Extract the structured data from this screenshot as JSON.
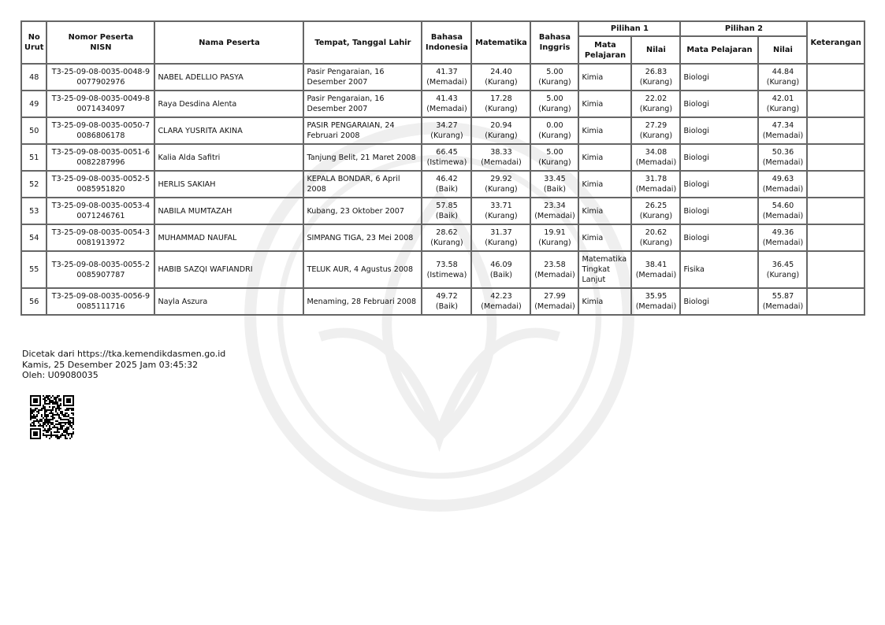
{
  "table": {
    "headers": {
      "no_urut": "No Urut",
      "nomor_peserta": "Nomor Peserta",
      "nisn": "NISN",
      "nama": "Nama Peserta",
      "ttl": "Tempat, Tanggal Lahir",
      "bahasa_indonesia": "Bahasa Indonesia",
      "matematika": "Matematika",
      "bahasa_inggris": "Bahasa Inggris",
      "pilihan1": "Pilihan 1",
      "pilihan2": "Pilihan 2",
      "mata_pelajaran": "Mata Pelajaran",
      "nilai": "Nilai",
      "keterangan": "Keterangan"
    },
    "rows": [
      {
        "no": "48",
        "nomor": "T3-25-09-08-0035-0048-9",
        "nisn": "0077902976",
        "nama": "NABEL ADELLIO PASYA",
        "ttl": "Pasir Pengaraian, 16 Desember 2007",
        "bi": "41.37",
        "bi_k": "(Memadai)",
        "mtk": "24.40",
        "mtk_k": "(Kurang)",
        "big": "5.00",
        "big_k": "(Kurang)",
        "p1": "Kimia",
        "p1n": "26.83",
        "p1k": "(Kurang)",
        "p2": "Biologi",
        "p2n": "44.84",
        "p2k": "(Kurang)",
        "ket": ""
      },
      {
        "no": "49",
        "nomor": "T3-25-09-08-0035-0049-8",
        "nisn": "0071434097",
        "nama": "Raya Desdina Alenta",
        "ttl": "Pasir Pengaraian, 16 Desember 2007",
        "bi": "41.43",
        "bi_k": "(Memadai)",
        "mtk": "17.28",
        "mtk_k": "(Kurang)",
        "big": "5.00",
        "big_k": "(Kurang)",
        "p1": "Kimia",
        "p1n": "22.02",
        "p1k": "(Kurang)",
        "p2": "Biologi",
        "p2n": "42.01",
        "p2k": "(Kurang)",
        "ket": ""
      },
      {
        "no": "50",
        "nomor": "T3-25-09-08-0035-0050-7",
        "nisn": "0086806178",
        "nama": "CLARA YUSRITA AKINA",
        "ttl": "PASIR PENGARAIAN, 24 Februari 2008",
        "bi": "34.27",
        "bi_k": "(Kurang)",
        "mtk": "20.94",
        "mtk_k": "(Kurang)",
        "big": "0.00",
        "big_k": "(Kurang)",
        "p1": "Kimia",
        "p1n": "27.29",
        "p1k": "(Kurang)",
        "p2": "Biologi",
        "p2n": "47.34",
        "p2k": "(Memadai)",
        "ket": ""
      },
      {
        "no": "51",
        "nomor": "T3-25-09-08-0035-0051-6",
        "nisn": "0082287996",
        "nama": "Kalia Alda Safitri",
        "ttl": "Tanjung Belit, 21 Maret 2008",
        "bi": "66.45",
        "bi_k": "(Istimewa)",
        "mtk": "38.33",
        "mtk_k": "(Memadai)",
        "big": "5.00",
        "big_k": "(Kurang)",
        "p1": "Kimia",
        "p1n": "34.08",
        "p1k": "(Memadai)",
        "p2": "Biologi",
        "p2n": "50.36",
        "p2k": "(Memadai)",
        "ket": ""
      },
      {
        "no": "52",
        "nomor": "T3-25-09-08-0035-0052-5",
        "nisn": "0085951820",
        "nama": "HERLIS SAKIAH",
        "ttl": "KEPALA BONDAR, 6 April 2008",
        "bi": "46.42",
        "bi_k": "(Baik)",
        "mtk": "29.92",
        "mtk_k": "(Kurang)",
        "big": "33.45",
        "big_k": "(Baik)",
        "p1": "Kimia",
        "p1n": "31.78",
        "p1k": "(Memadai)",
        "p2": "Biologi",
        "p2n": "49.63",
        "p2k": "(Memadai)",
        "ket": ""
      },
      {
        "no": "53",
        "nomor": "T3-25-09-08-0035-0053-4",
        "nisn": "0071246761",
        "nama": "NABILA MUMTAZAH",
        "ttl": "Kubang, 23 Oktober 2007",
        "bi": "57.85",
        "bi_k": "(Baik)",
        "mtk": "33.71",
        "mtk_k": "(Kurang)",
        "big": "23.34",
        "big_k": "(Memadai)",
        "p1": "Kimia",
        "p1n": "26.25",
        "p1k": "(Kurang)",
        "p2": "Biologi",
        "p2n": "54.60",
        "p2k": "(Memadai)",
        "ket": ""
      },
      {
        "no": "54",
        "nomor": "T3-25-09-08-0035-0054-3",
        "nisn": "0081913972",
        "nama": "MUHAMMAD NAUFAL",
        "ttl": "SIMPANG TIGA, 23 Mei 2008",
        "bi": "28.62",
        "bi_k": "(Kurang)",
        "mtk": "31.37",
        "mtk_k": "(Kurang)",
        "big": "19.91",
        "big_k": "(Kurang)",
        "p1": "Kimia",
        "p1n": "20.62",
        "p1k": "(Kurang)",
        "p2": "Biologi",
        "p2n": "49.36",
        "p2k": "(Memadai)",
        "ket": ""
      },
      {
        "no": "55",
        "nomor": "T3-25-09-08-0035-0055-2",
        "nisn": "0085907787",
        "nama": "HABIB SAZQI WAFIANDRI",
        "ttl": "TELUK AUR, 4 Agustus 2008",
        "bi": "73.58",
        "bi_k": "(Istimewa)",
        "mtk": "46.09",
        "mtk_k": "(Baik)",
        "big": "23.58",
        "big_k": "(Memadai)",
        "p1": "Matematika Tingkat Lanjut",
        "p1n": "38.41",
        "p1k": "(Memadai)",
        "p2": "Fisika",
        "p2n": "36.45",
        "p2k": "(Kurang)",
        "ket": ""
      },
      {
        "no": "56",
        "nomor": "T3-25-09-08-0035-0056-9",
        "nisn": "0085111716",
        "nama": "Nayla Aszura",
        "ttl": "Menaming, 28 Februari 2008",
        "bi": "49.72",
        "bi_k": "(Baik)",
        "mtk": "42.23",
        "mtk_k": "(Memadai)",
        "big": "27.99",
        "big_k": "(Memadai)",
        "p1": "Kimia",
        "p1n": "35.95",
        "p1k": "(Memadai)",
        "p2": "Biologi",
        "p2n": "55.87",
        "p2k": "(Memadai)",
        "ket": ""
      }
    ]
  },
  "footer": {
    "printed_from": "Dicetak dari https://tka.kemendikdasmen.go.id",
    "printed_at": "Kamis, 25 Desember 2025 Jam 03:45:32",
    "printed_by": "Oleh: U09080035"
  },
  "colors": {
    "border": "#666666",
    "text": "#111111"
  }
}
